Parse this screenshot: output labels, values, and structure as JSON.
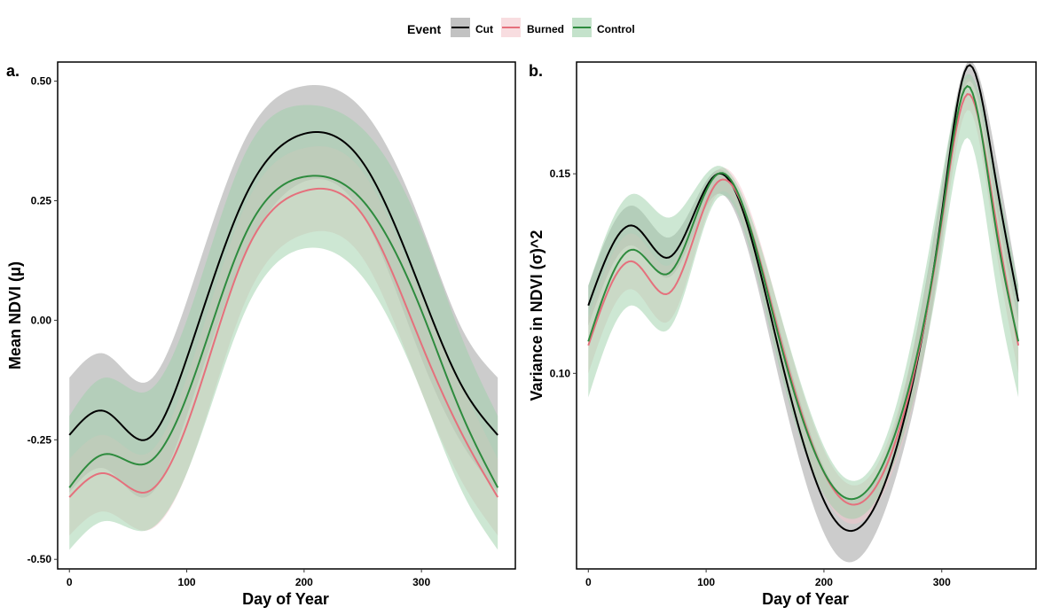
{
  "legend": {
    "title": "Event",
    "position": "top-center",
    "entries": [
      {
        "label": "Cut",
        "line_color": "#000000",
        "fill_color": "#999999"
      },
      {
        "label": "Burned",
        "line_color": "#E5707C",
        "fill_color": "#F4C6CC"
      },
      {
        "label": "Control",
        "line_color": "#2E8B3E",
        "fill_color": "#9CCFA8"
      }
    ]
  },
  "chart_data": [
    {
      "panel_label": "a.",
      "type": "line",
      "xlabel": "Day of Year",
      "ylabel": "Mean NDVI (μ)",
      "xlim": [
        -10,
        380
      ],
      "ylim": [
        -0.52,
        0.54
      ],
      "xticks": [
        0,
        100,
        200,
        300
      ],
      "xtick_labels": [
        "0",
        "100",
        "200",
        "300"
      ],
      "yticks": [
        -0.5,
        -0.25,
        0.0,
        0.25,
        0.5
      ],
      "ytick_labels": [
        "-0.50",
        "-0.25",
        "0.00",
        "0.25",
        "0.50"
      ],
      "grid": false,
      "x": [
        0,
        30,
        65,
        100,
        150,
        200,
        250,
        300,
        335,
        365
      ],
      "series": [
        {
          "name": "Cut",
          "values": [
            -0.24,
            -0.19,
            -0.25,
            -0.08,
            0.26,
            0.39,
            0.33,
            0.06,
            -0.14,
            -0.24
          ],
          "lower": [
            -0.36,
            -0.31,
            -0.37,
            -0.2,
            0.14,
            0.29,
            0.22,
            -0.08,
            -0.26,
            -0.36
          ],
          "upper": [
            -0.12,
            -0.07,
            -0.13,
            0.04,
            0.38,
            0.49,
            0.44,
            0.2,
            -0.02,
            -0.12
          ]
        },
        {
          "name": "Burned",
          "values": [
            -0.37,
            -0.32,
            -0.36,
            -0.22,
            0.14,
            0.27,
            0.22,
            -0.05,
            -0.24,
            -0.37
          ],
          "lower": [
            -0.45,
            -0.4,
            -0.44,
            -0.32,
            0.04,
            0.18,
            0.13,
            -0.15,
            -0.34,
            -0.45
          ],
          "upper": [
            -0.29,
            -0.24,
            -0.28,
            -0.12,
            0.24,
            0.36,
            0.31,
            0.05,
            -0.14,
            -0.29
          ]
        },
        {
          "name": "Control",
          "values": [
            -0.35,
            -0.28,
            -0.3,
            -0.16,
            0.18,
            0.3,
            0.25,
            0.02,
            -0.2,
            -0.35
          ],
          "lower": [
            -0.48,
            -0.42,
            -0.44,
            -0.32,
            0.02,
            0.15,
            0.09,
            -0.15,
            -0.36,
            -0.48
          ],
          "upper": [
            -0.2,
            -0.12,
            -0.15,
            0.0,
            0.35,
            0.45,
            0.4,
            0.19,
            -0.04,
            -0.2
          ]
        }
      ]
    },
    {
      "panel_label": "b.",
      "type": "line",
      "xlabel": "Day of Year",
      "ylabel": "Variance in NDVI (σ)^2",
      "xlim": [
        -10,
        380
      ],
      "ylim": [
        0.051,
        0.178
      ],
      "xticks": [
        0,
        100,
        200,
        300
      ],
      "xtick_labels": [
        "0",
        "100",
        "200",
        "300"
      ],
      "yticks": [
        0.1,
        0.15
      ],
      "ytick_labels": [
        "0.10",
        "0.15"
      ],
      "grid": false,
      "x": [
        0,
        38,
        68,
        110,
        160,
        217,
        265,
        300,
        322,
        345,
        365
      ],
      "series": [
        {
          "name": "Cut",
          "values": [
            0.117,
            0.137,
            0.129,
            0.15,
            0.108,
            0.061,
            0.085,
            0.14,
            0.177,
            0.15,
            0.118
          ],
          "lower": [
            0.112,
            0.132,
            0.124,
            0.145,
            0.101,
            0.053,
            0.078,
            0.133,
            0.173,
            0.144,
            0.113
          ],
          "upper": [
            0.122,
            0.142,
            0.134,
            0.151,
            0.114,
            0.069,
            0.092,
            0.147,
            0.178,
            0.156,
            0.122
          ]
        },
        {
          "name": "Burned",
          "values": [
            0.107,
            0.128,
            0.12,
            0.148,
            0.112,
            0.068,
            0.087,
            0.138,
            0.17,
            0.14,
            0.107
          ],
          "lower": [
            0.1,
            0.121,
            0.113,
            0.145,
            0.106,
            0.063,
            0.081,
            0.131,
            0.166,
            0.133,
            0.1
          ],
          "upper": [
            0.114,
            0.135,
            0.127,
            0.151,
            0.118,
            0.073,
            0.093,
            0.145,
            0.174,
            0.147,
            0.114
          ]
        },
        {
          "name": "Control",
          "values": [
            0.108,
            0.131,
            0.125,
            0.15,
            0.111,
            0.069,
            0.089,
            0.139,
            0.172,
            0.138,
            0.108
          ],
          "lower": [
            0.094,
            0.117,
            0.111,
            0.144,
            0.104,
            0.064,
            0.082,
            0.129,
            0.159,
            0.124,
            0.094
          ],
          "upper": [
            0.122,
            0.145,
            0.139,
            0.152,
            0.118,
            0.074,
            0.096,
            0.149,
            0.175,
            0.152,
            0.122
          ]
        }
      ]
    }
  ]
}
